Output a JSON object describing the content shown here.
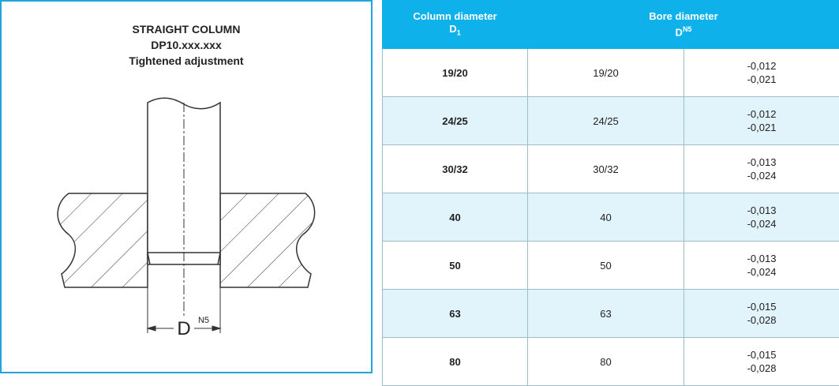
{
  "diagram": {
    "title": [
      "STRAIGHT COLUMN",
      "DP10.xxx.xxx",
      "Tightened adjustment"
    ],
    "label": "D",
    "label_sup": "N5"
  },
  "table": {
    "headers": [
      {
        "text": "Column diameter",
        "symbol": "D",
        "sub": "1"
      },
      {
        "text": "Bore diameter",
        "symbol": "D",
        "sup": "N5"
      }
    ],
    "rows": [
      [
        "19/20",
        "19/20",
        [
          "-0,012",
          "-0,021"
        ]
      ],
      [
        "24/25",
        "24/25",
        [
          "-0,012",
          "-0,021"
        ]
      ],
      [
        "30/32",
        "30/32",
        [
          "-0,013",
          "-0,024"
        ]
      ],
      [
        "40",
        "40",
        [
          "-0,013",
          "-0,024"
        ]
      ],
      [
        "50",
        "50",
        [
          "-0,013",
          "-0,024"
        ]
      ],
      [
        "63",
        "63",
        [
          "-0,015",
          "-0,028"
        ]
      ],
      [
        "80",
        "80",
        [
          "-0,015",
          "-0,028"
        ]
      ]
    ]
  }
}
